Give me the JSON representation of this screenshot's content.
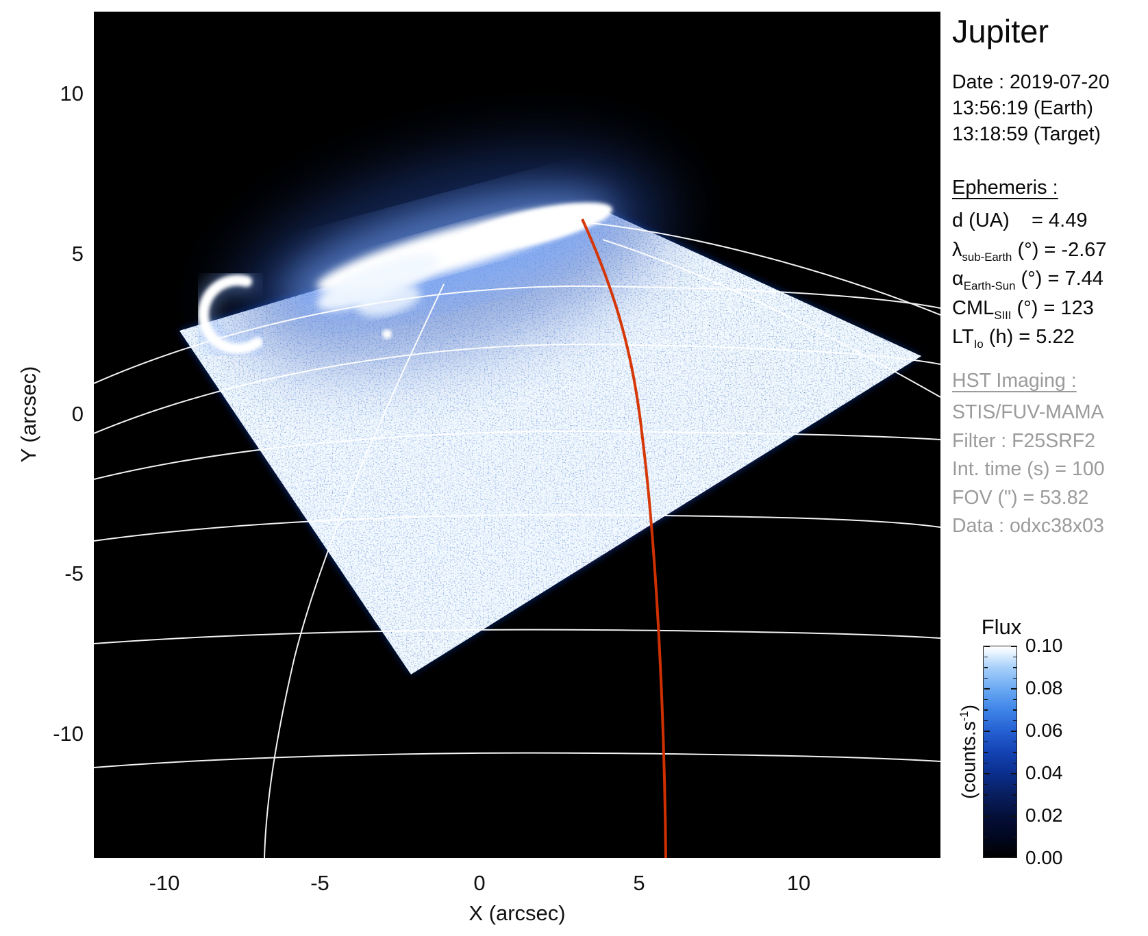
{
  "title": "Jupiter",
  "info": {
    "date_line": "Date : 2019-07-20",
    "earth_time": "13:56:19 (Earth)",
    "target_time": "13:18:59 (Target)"
  },
  "ephemeris": {
    "heading": "Ephemeris : ",
    "items": [
      {
        "pre": "d (UA)",
        "sub": "",
        "post": "    = 4.49"
      },
      {
        "pre": "λ",
        "sub": "sub-Earth",
        "post": " (°) = -2.67"
      },
      {
        "pre": "α",
        "sub": "Earth-Sun",
        "post": " (°) = 7.44"
      },
      {
        "pre": "CML",
        "sub": "SIII",
        "post": " (°) = 123"
      },
      {
        "pre": "LT",
        "sub": "Io",
        "post": " (h) = 5.22"
      }
    ]
  },
  "hst": {
    "heading": "HST Imaging : ",
    "lines": [
      "STIS/FUV-MAMA",
      "Filter : F25SRF2",
      "Int. time (s) = 100",
      "FOV (\") = 53.82",
      "Data : odxc38x03"
    ]
  },
  "colorbar": {
    "title": "Flux",
    "unit_pre": "(counts.s",
    "unit_sup": "-1",
    "unit_post": ")",
    "ticks": [
      "0.10",
      "0.08",
      "0.06",
      "0.04",
      "0.02",
      "0.00"
    ]
  },
  "axes": {
    "xlabel": "X (arcsec)",
    "ylabel": "Y (arcsec)",
    "x_ticks": [
      "-10",
      "-5",
      "0",
      "5",
      "10"
    ],
    "y_ticks": [
      "10",
      "5",
      "0",
      "-5",
      "-10"
    ]
  },
  "colors": {
    "accent_red": "#d63200",
    "detector_blue": "#12309a",
    "gray_text": "#9b9b9b",
    "graticule_white": "#ffffff"
  },
  "chart_data": {
    "type": "heatmap",
    "title": "Jupiter",
    "xlabel": "X (arcsec)",
    "ylabel": "Y (arcsec)",
    "xlim": [
      -12.1,
      14.5
    ],
    "ylim": [
      -13.9,
      12.6
    ],
    "x_ticks": [
      -10,
      -5,
      0,
      5,
      10
    ],
    "y_ticks": [
      10,
      5,
      0,
      -5,
      -10
    ],
    "grid": false,
    "background": "black",
    "colorbar": {
      "title": "Flux",
      "unit": "counts.s^-1",
      "ticks": [
        0.1,
        0.08,
        0.06,
        0.04,
        0.02,
        0.0
      ],
      "min": 0.0,
      "max": 0.1,
      "colormap": "black-to-blue-to-white"
    },
    "features": [
      {
        "name": "detector-fov",
        "shape": "rotated-quadrilateral",
        "corners_arcsec": [
          [
            -9.5,
            2.6
          ],
          [
            3.7,
            6.5
          ],
          [
            13.9,
            1.8
          ],
          [
            -2.2,
            -8.1
          ]
        ],
        "description": "STIS FUV-MAMA detector field of view filled with blue photon-count speckle noise"
      },
      {
        "name": "main-auroral-oval",
        "approx_center_arcsec": [
          -1.0,
          4.9
        ],
        "extent_arcsec": [
          [
            -5.4,
            3.7
          ],
          [
            3.4,
            6.3
          ]
        ],
        "description": "bright white north polar auroral emission arc along FOV upper edge"
      },
      {
        "name": "secondary-auroral-crescent",
        "approx_center_arcsec": [
          -7.6,
          3.3
        ],
        "description": "crescent-shaped (C) auroral emission opening east"
      },
      {
        "name": "graticule",
        "color": "#ffffff",
        "description": "planetary latitude/longitude grid: 6 near-horizontal latitude arcs, limb arc and 2 white meridian arcs"
      },
      {
        "name": "meridian-line-red",
        "color": "#d63200",
        "from_arcsec": [
          3.1,
          6.2
        ],
        "to_arcsec": [
          6.0,
          -13.9
        ],
        "description": "red meridian line running from the auroral oval to the bottom of the frame"
      }
    ]
  }
}
